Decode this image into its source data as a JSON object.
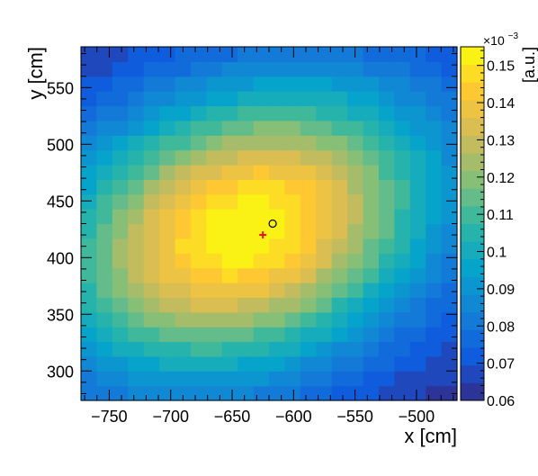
{
  "chart_data": {
    "type": "heatmap",
    "title": "",
    "xlabel": "x [cm]",
    "ylabel": "y [cm]",
    "colorbar_label": "[a.u.]",
    "colorbar_exponent": "×10",
    "colorbar_exponent_power": "−3",
    "xlim": [
      -773,
      -467
    ],
    "ylim": [
      274,
      586
    ],
    "zlim": [
      0.06,
      0.155
    ],
    "x_ticks": [
      -750,
      -700,
      -650,
      -600,
      -550,
      -500
    ],
    "x_tick_labels": [
      "−750",
      "−700",
      "−650",
      "−600",
      "−550",
      "−500"
    ],
    "y_ticks": [
      300,
      350,
      400,
      450,
      500,
      550
    ],
    "y_tick_labels": [
      "300",
      "350",
      "400",
      "450",
      "500",
      "550"
    ],
    "z_ticks": [
      0.06,
      0.07,
      0.08,
      0.09,
      0.1,
      0.11,
      0.12,
      0.13,
      0.14,
      0.15
    ],
    "z_tick_labels": [
      "0.06",
      "0.07",
      "0.08",
      "0.09",
      "0.1",
      "0.11",
      "0.12",
      "0.13",
      "0.14",
      "0.15"
    ],
    "grid": false,
    "colormap": [
      "#352a87",
      "#0f5cdd",
      "#1481d6",
      "#06a4ca",
      "#2eb7a4",
      "#87bf77",
      "#d1bb59",
      "#fec832",
      "#f9fb0e"
    ],
    "bins": {
      "nx": 24,
      "ny": 24,
      "x_first_center": -766.6,
      "x_step": 12.75,
      "y_first_center": 280.5,
      "y_step": 13
    },
    "model": {
      "peak_x": -640,
      "peak_y": 425,
      "sigma_x": 110,
      "sigma_y": 90,
      "rho": 0.25,
      "z_min": 0.06,
      "z_max": 0.155,
      "description_values": "Binned intensity surface, maximum ~0.155 near (-640, 425), minimum ~0.06 at top-right and bottom-right corners"
    },
    "markers": [
      {
        "name": "red-cross",
        "x": -625,
        "y": 420,
        "color": "#e6131d",
        "shape": "cross"
      },
      {
        "name": "black-circle",
        "x": -617,
        "y": 430,
        "color": "#000000",
        "shape": "circle"
      }
    ]
  }
}
